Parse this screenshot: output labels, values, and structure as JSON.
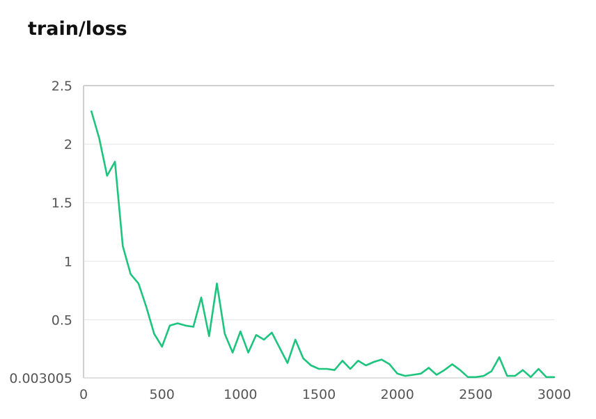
{
  "chart_data": {
    "type": "line",
    "title": "train/loss",
    "xlabel": "",
    "ylabel": "",
    "xlim": [
      0,
      3000
    ],
    "ylim": [
      0.003005,
      2.5
    ],
    "x_ticks": [
      "0",
      "500",
      "1000",
      "1500",
      "2000",
      "2500",
      "3000"
    ],
    "y_ticks": [
      {
        "value": 2.5,
        "label": "2.5"
      },
      {
        "value": 2,
        "label": "2"
      },
      {
        "value": 1.5,
        "label": "1.5"
      },
      {
        "value": 1,
        "label": "1"
      },
      {
        "value": 0.5,
        "label": "0.5"
      },
      {
        "value": 0.003005,
        "label": "0.003005"
      }
    ],
    "grid": true,
    "color": "#1dc47e",
    "series": [
      {
        "x": [
          50,
          100,
          150,
          200,
          250,
          300,
          350,
          400,
          450,
          500,
          550,
          600,
          650,
          700,
          750,
          800,
          850,
          900,
          950,
          1000,
          1050,
          1100,
          1150,
          1200,
          1250,
          1300,
          1350,
          1400,
          1450,
          1500,
          1550,
          1600,
          1650,
          1700,
          1750,
          1800,
          1850,
          1900,
          1950,
          2000,
          2050,
          2100,
          2150,
          2200,
          2250,
          2300,
          2350,
          2400,
          2450,
          2500,
          2550,
          2600,
          2650,
          2700,
          2750,
          2800,
          2850,
          2900,
          2950,
          3000
        ],
        "y": [
          2.28,
          2.05,
          1.73,
          1.85,
          1.13,
          0.89,
          0.81,
          0.61,
          0.38,
          0.27,
          0.45,
          0.47,
          0.45,
          0.44,
          0.69,
          0.36,
          0.81,
          0.38,
          0.22,
          0.4,
          0.22,
          0.37,
          0.33,
          0.39,
          0.26,
          0.13,
          0.33,
          0.17,
          0.11,
          0.08,
          0.08,
          0.07,
          0.15,
          0.08,
          0.15,
          0.11,
          0.14,
          0.16,
          0.12,
          0.04,
          0.02,
          0.03,
          0.04,
          0.09,
          0.03,
          0.07,
          0.12,
          0.07,
          0.01,
          0.01,
          0.02,
          0.06,
          0.18,
          0.02,
          0.02,
          0.07,
          0.01,
          0.08,
          0.01,
          0.01
        ]
      }
    ]
  }
}
